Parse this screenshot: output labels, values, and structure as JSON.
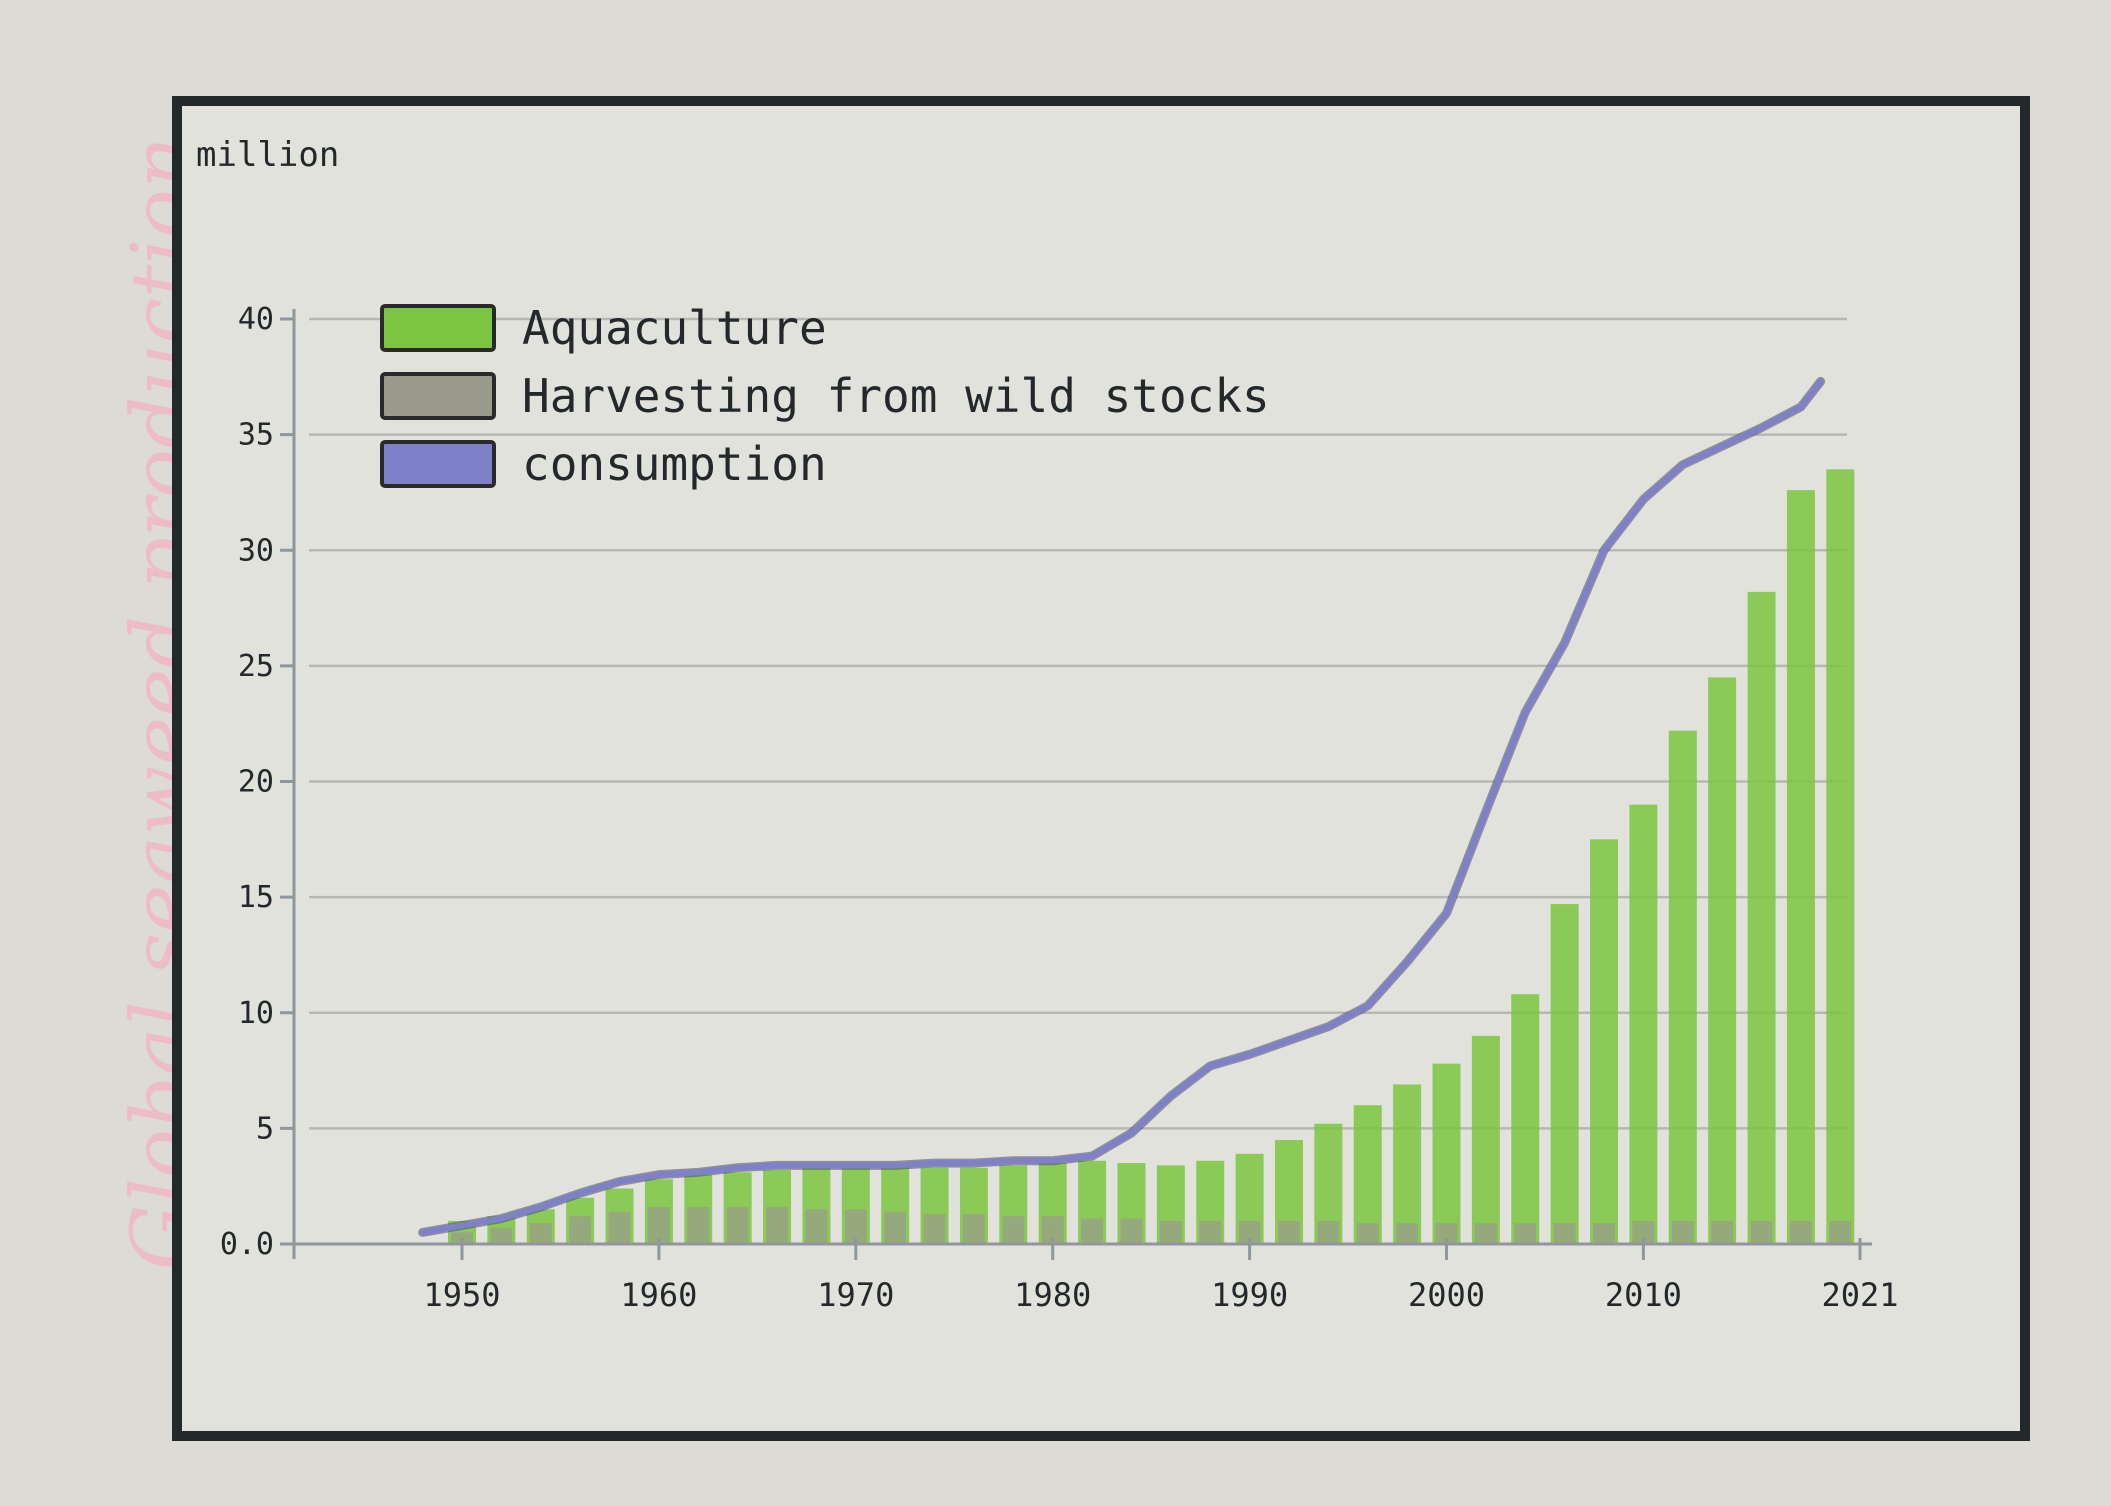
{
  "side_title": "Global seaweed production",
  "colors": {
    "aquaculture": "#7cc540",
    "wild": "#9a9b8d",
    "consumption": "#7e80c8",
    "grid": "#b7b7b3",
    "axis": "#8e979b",
    "frame": "#23282b"
  },
  "chart_data": {
    "type": "bar",
    "title": "Global seaweed production",
    "ylabel": "million",
    "xlabel": "",
    "ylim": [
      0,
      40
    ],
    "xlim": [
      1950,
      2021
    ],
    "yticks": [
      0,
      5,
      10,
      15,
      20,
      25,
      30,
      35,
      40
    ],
    "ytick_labels": [
      "0.0",
      "5",
      "10",
      "15",
      "20",
      "25",
      "30",
      "35",
      "40"
    ],
    "xticks": [
      1950,
      1960,
      1970,
      1980,
      1990,
      2000,
      2010,
      2021
    ],
    "xtick_labels": [
      "1950",
      "1960",
      "1970",
      "1980",
      "1990",
      "2000",
      "2010",
      "2021"
    ],
    "grid": true,
    "legend": {
      "position": "top-left",
      "entries": [
        {
          "key": "aquaculture",
          "label": "Aquaculture"
        },
        {
          "key": "wild",
          "label": "Harvesting from wild stocks"
        },
        {
          "key": "consumption",
          "label": "consumption"
        }
      ]
    },
    "years": [
      1950,
      1952,
      1954,
      1956,
      1958,
      1960,
      1962,
      1964,
      1966,
      1968,
      1970,
      1972,
      1974,
      1976,
      1978,
      1980,
      1982,
      1984,
      1986,
      1988,
      1990,
      1992,
      1994,
      1996,
      1998,
      2000,
      2002,
      2004,
      2006,
      2008,
      2010,
      2012,
      2014,
      2016,
      2018,
      2020
    ],
    "series": [
      {
        "name": "Aquaculture",
        "key": "aquaculture",
        "values": [
          1.0,
          1.2,
          1.5,
          2.0,
          2.4,
          2.8,
          3.0,
          3.1,
          3.2,
          3.3,
          3.4,
          3.4,
          3.3,
          3.3,
          3.4,
          3.5,
          3.6,
          3.5,
          3.4,
          3.6,
          3.9,
          4.5,
          5.2,
          6.0,
          6.9,
          7.8,
          9.0,
          10.8,
          14.7,
          17.5,
          19.0,
          22.2,
          24.5,
          28.2,
          32.6,
          33.5
        ]
      },
      {
        "name": "Harvesting from wild stocks",
        "key": "wild",
        "values": [
          0.5,
          0.7,
          0.9,
          1.2,
          1.4,
          1.6,
          1.6,
          1.6,
          1.6,
          1.5,
          1.5,
          1.4,
          1.3,
          1.3,
          1.2,
          1.2,
          1.1,
          1.1,
          1.0,
          1.0,
          1.0,
          1.0,
          1.0,
          0.9,
          0.9,
          0.9,
          0.9,
          0.9,
          0.9,
          0.9,
          1.0,
          1.0,
          1.0,
          1.0,
          1.0,
          1.0
        ]
      },
      {
        "name": "consumption",
        "key": "consumption",
        "type": "line",
        "x": [
          1948,
          1950,
          1952,
          1954,
          1956,
          1958,
          1960,
          1962,
          1964,
          1966,
          1968,
          1970,
          1972,
          1974,
          1976,
          1978,
          1980,
          1982,
          1984,
          1986,
          1988,
          1990,
          1992,
          1994,
          1996,
          1998,
          2000,
          2002,
          2004,
          2006,
          2008,
          2010,
          2012,
          2014,
          2016,
          2018,
          2019
        ],
        "values": [
          0.5,
          0.8,
          1.1,
          1.6,
          2.2,
          2.7,
          3.0,
          3.1,
          3.3,
          3.4,
          3.4,
          3.4,
          3.4,
          3.5,
          3.5,
          3.6,
          3.6,
          3.8,
          4.8,
          6.4,
          7.7,
          8.2,
          8.8,
          9.4,
          10.3,
          12.2,
          14.3,
          18.7,
          23.0,
          26.0,
          30.0,
          32.2,
          33.7,
          34.5,
          35.3,
          36.2,
          37.3
        ]
      }
    ]
  }
}
